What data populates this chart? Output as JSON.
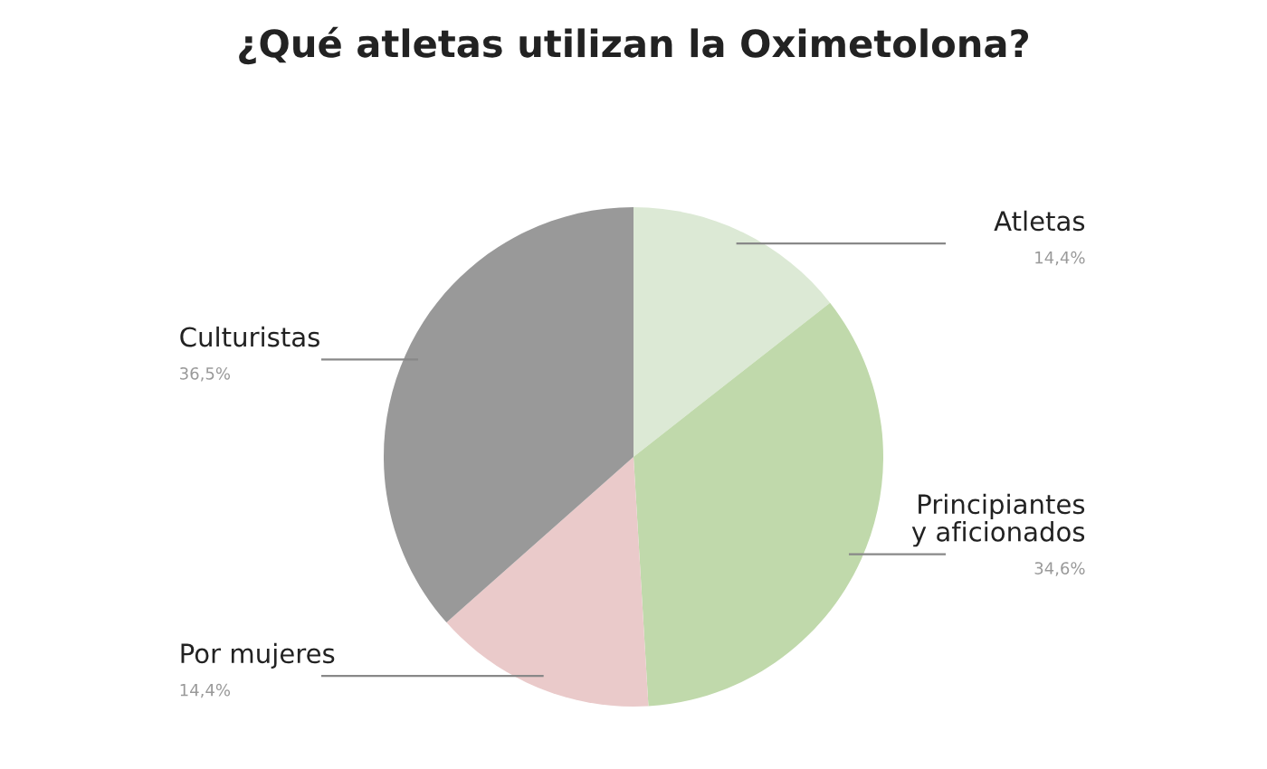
{
  "chart_data": {
    "type": "pie",
    "title": "¿Qué atletas utilizan la Oximetolona?",
    "categories": [
      "Atletas",
      "Principiantes\ny aficionados",
      "Por mujeres",
      "Culturistas"
    ],
    "values": [
      14.4,
      34.6,
      14.4,
      36.5
    ],
    "value_labels": [
      "14,4%",
      "34,6%",
      "14,4%",
      "36,5%"
    ],
    "colors": [
      "#dce9d5",
      "#c0d9ab",
      "#eacaca",
      "#999999"
    ]
  }
}
